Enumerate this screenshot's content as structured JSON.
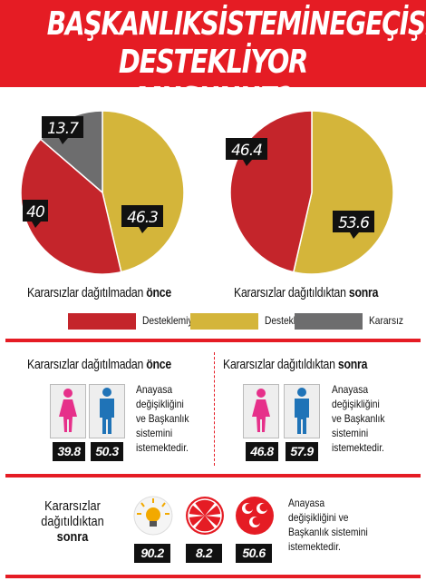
{
  "title": {
    "line1": "BAŞKANLIKSİSTEMİNEGEÇİŞİ",
    "line2": "DESTEKLİYOR MUSUNUZ?"
  },
  "colors": {
    "red": "#e51c24",
    "pie_red": "#c4252b",
    "pie_yellow": "#d4b53a",
    "pie_gray": "#6d6d6e",
    "female": "#e6308a",
    "male": "#1f73b7"
  },
  "chart_data": [
    {
      "type": "pie",
      "caption_prefix": "Kararsızlar dağıtılmadan ",
      "caption_bold": "önce",
      "slices": [
        {
          "label": "Destekliyor",
          "value": 46.3,
          "color": "#d4b53a"
        },
        {
          "label": "Desteklemiyor",
          "value": 40,
          "color": "#c4252b"
        },
        {
          "label": "Kararsız",
          "value": 13.7,
          "color": "#6d6d6e"
        }
      ]
    },
    {
      "type": "pie",
      "caption_prefix": "Kararsızlar dağıtıldıktan ",
      "caption_bold": "sonra",
      "slices": [
        {
          "label": "Destekliyor",
          "value": 53.6,
          "color": "#d4b53a"
        },
        {
          "label": "Desteklemiyor",
          "value": 46.4,
          "color": "#c4252b"
        }
      ]
    }
  ],
  "legend": [
    {
      "label": "Desteklemiyor",
      "color": "#c4252b"
    },
    {
      "label": "Destekliyor",
      "color": "#d4b53a"
    },
    {
      "label": "Kararsız",
      "color": "#6d6d6e"
    }
  ],
  "gender": {
    "before": {
      "title_prefix": "Kararsızlar dağıtılmadan ",
      "title_bold": "önce",
      "female": "39.8",
      "male": "50.3"
    },
    "after": {
      "title_prefix": "Kararsızlar dağıtıldıktan ",
      "title_bold": "sonra",
      "female": "46.8",
      "male": "57.9"
    },
    "desc_lines": [
      "Anayasa",
      "değişikliğini",
      "ve Başkanlık",
      "sistemini",
      "istemektedir."
    ]
  },
  "parties": {
    "title_lines": [
      "Kararsızlar",
      "dağıtıldıktan"
    ],
    "title_bold": "sonra",
    "values": [
      "90.2",
      "8.2",
      "50.6"
    ],
    "desc_lines": [
      "Anayasa",
      "değişikliğini ve",
      "Başkanlık sistemini",
      "istemektedir."
    ]
  }
}
